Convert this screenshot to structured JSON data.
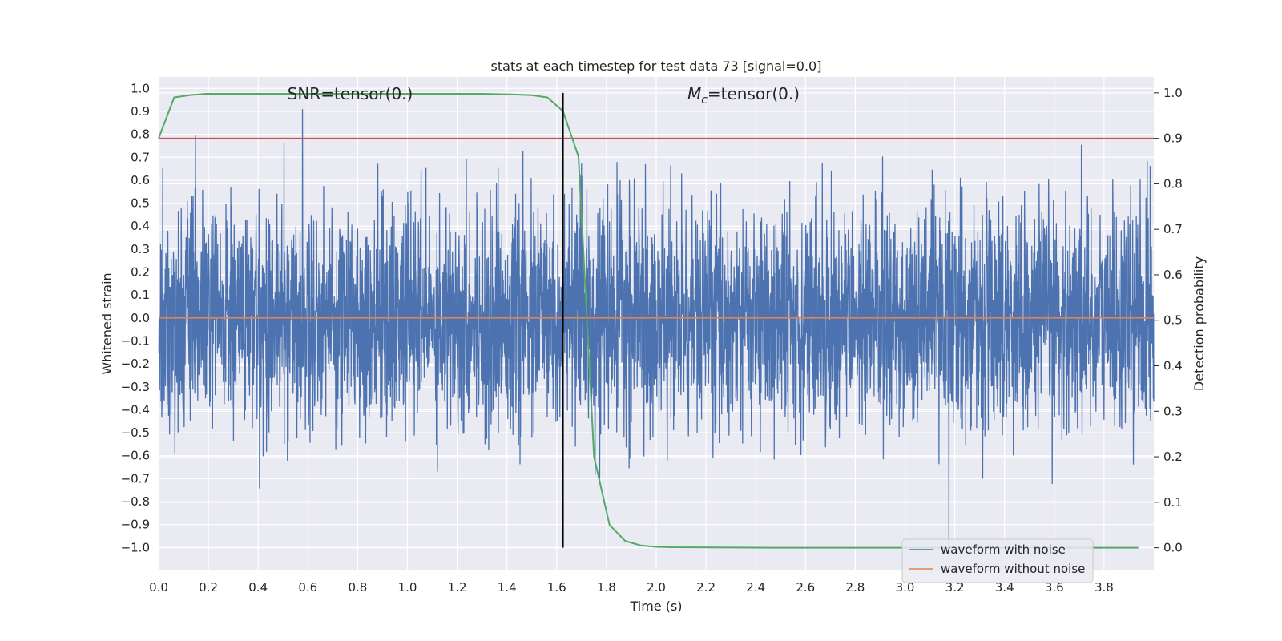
{
  "chart_data": {
    "type": "line",
    "title": "stats at each timestep for test data 73 [signal=0.0]",
    "xlabel": "Time (s)",
    "ylabel_left": "Whitened strain",
    "ylabel_right": "Detection probability",
    "xlim": [
      0.0,
      4.0
    ],
    "ylim_left": [
      -1.1,
      1.05
    ],
    "ylim_right": [
      -0.05,
      1.035
    ],
    "x_ticks": [
      "0.0",
      "0.2",
      "0.4",
      "0.6",
      "0.8",
      "1.0",
      "1.2",
      "1.4",
      "1.6",
      "1.8",
      "2.0",
      "2.2",
      "2.4",
      "2.6",
      "2.8",
      "3.0",
      "3.2",
      "3.4",
      "3.6",
      "3.8"
    ],
    "y_ticks_left": [
      "1.0",
      "0.9",
      "0.8",
      "0.7",
      "0.6",
      "0.5",
      "0.4",
      "0.3",
      "0.2",
      "0.1",
      "0.0",
      "−0.1",
      "−0.2",
      "−0.3",
      "−0.4",
      "−0.5",
      "−0.6",
      "−0.7",
      "−0.8",
      "−0.9",
      "−1.0"
    ],
    "y_ticks_right": [
      "1.0",
      "0.9",
      "0.8",
      "0.7",
      "0.6",
      "0.5",
      "0.4",
      "0.3",
      "0.2",
      "0.1",
      "0.0"
    ],
    "annotations": {
      "snr": "SNR=tensor(0.)",
      "mc_symbol": "M",
      "mc_sub": "c",
      "mc_rest": "=tensor(0.)"
    },
    "grid": true,
    "legend_placement": "lower-right",
    "legend": [
      "waveform with noise",
      "waveform without noise"
    ],
    "threshold": 0.9,
    "marker_time": 1.625,
    "noise_series": {
      "name": "waveform with noise",
      "color": "#4c72b0",
      "x_range": [
        0.0,
        4.0
      ],
      "amplitude_range": [
        -1.0,
        0.93
      ]
    },
    "clean_series": {
      "name": "waveform without noise",
      "color": "#dd8452",
      "value": 0.0
    },
    "probability_series": {
      "color": "#55a868",
      "x": [
        0.0,
        0.0625,
        0.125,
        0.1875,
        0.25,
        0.5,
        1.0,
        1.3,
        1.4,
        1.5,
        1.5625,
        1.625,
        1.6875,
        1.75,
        1.8125,
        1.875,
        1.9375,
        2.0,
        2.0625,
        2.5,
        3.0,
        3.5,
        3.9375
      ],
      "y": [
        0.9,
        0.99,
        0.995,
        0.998,
        0.998,
        0.998,
        0.998,
        0.998,
        0.997,
        0.995,
        0.99,
        0.96,
        0.86,
        0.2,
        0.05,
        0.015,
        0.005,
        0.002,
        0.001,
        0.0,
        0.0,
        0.0,
        0.0
      ]
    },
    "threshold_color": "#c44e52",
    "marker_color": "#000000"
  }
}
